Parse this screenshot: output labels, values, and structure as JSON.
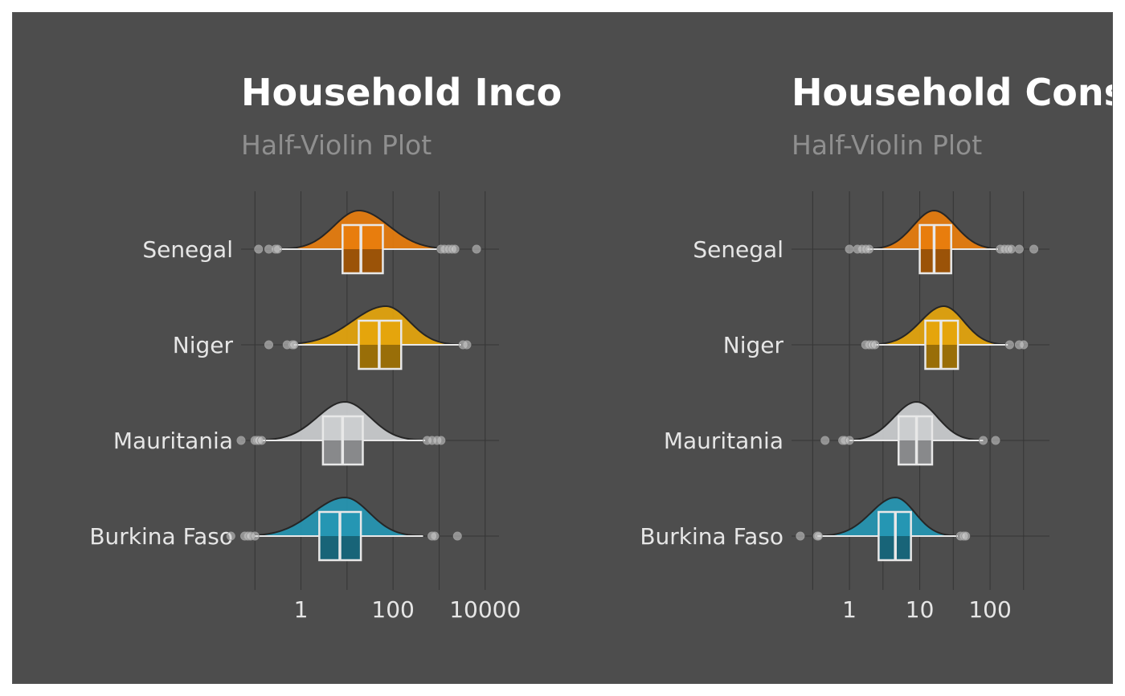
{
  "chart_data": [
    {
      "type": "half-violin",
      "title": "Household Income",
      "subtitle": "Half-Violin Plot",
      "x_scale": "log10",
      "xlim": [
        0.05,
        20000
      ],
      "x_ticks": [
        1,
        100,
        10000
      ],
      "x_tick_labels": [
        "1",
        "100",
        "10000"
      ],
      "minor_gridlines": [
        0.1,
        10,
        1000
      ],
      "grid": true,
      "categories": [
        "Senegal",
        "Niger",
        "Mauritania",
        "Burkina Faso"
      ],
      "series": [
        {
          "name": "Senegal",
          "color": "#E87D0D",
          "q1": 8,
          "median": 20,
          "q3": 60,
          "whisker_low": 0.35,
          "whisker_high": 900,
          "peak": 18,
          "outliers": [
            0.12,
            0.2,
            0.28,
            0.31,
            1100,
            1300,
            1600,
            1900,
            2200,
            6500
          ]
        },
        {
          "name": "Niger",
          "color": "#E5A50C",
          "q1": 18,
          "median": 50,
          "q3": 150,
          "whisker_low": 0.7,
          "whisker_high": 3000,
          "peak": 70,
          "outliers": [
            0.2,
            0.5,
            0.65,
            0.7,
            3300,
            4000
          ]
        },
        {
          "name": "Mauritania",
          "color": "#CBCDCF",
          "q1": 3,
          "median": 8,
          "q3": 22,
          "whisker_low": 0.14,
          "whisker_high": 500,
          "peak": 9,
          "outliers": [
            0.05,
            0.1,
            0.11,
            0.12,
            0.14,
            550,
            700,
            900,
            1100
          ]
        },
        {
          "name": "Burkina Faso",
          "color": "#2596B3",
          "q1": 2.5,
          "median": 7,
          "q3": 20,
          "whisker_low": 0.1,
          "whisker_high": 450,
          "peak": 9,
          "outliers": [
            0.03,
            0.06,
            0.07,
            0.08,
            0.1,
            700,
            800,
            2500
          ]
        }
      ]
    },
    {
      "type": "half-violin",
      "title": "Household Consumption",
      "subtitle": "Half-Violin Plot",
      "x_scale": "log10",
      "xlim": [
        0.15,
        700
      ],
      "x_ticks": [
        1,
        10,
        100
      ],
      "x_tick_labels": [
        "1",
        "10",
        "100"
      ],
      "minor_gridlines": [
        0.3,
        3,
        30,
        300
      ],
      "grid": true,
      "categories": [
        "Senegal",
        "Niger",
        "Mauritania",
        "Burkina Faso"
      ],
      "series": [
        {
          "name": "Senegal",
          "color": "#E87D0D",
          "q1": 10,
          "median": 16,
          "q3": 28,
          "whisker_low": 1.8,
          "whisker_high": 130,
          "peak": 16,
          "outliers": [
            1,
            1.3,
            1.5,
            1.7,
            1.9,
            140,
            160,
            180,
            200,
            260,
            420
          ]
        },
        {
          "name": "Niger",
          "color": "#E5A50C",
          "q1": 12,
          "median": 20,
          "q3": 35,
          "whisker_low": 2.3,
          "whisker_high": 180,
          "peak": 22,
          "outliers": [
            1.7,
            1.9,
            2.1,
            2.3,
            190,
            260,
            300
          ]
        },
        {
          "name": "Mauritania",
          "color": "#CBCDCF",
          "q1": 5,
          "median": 9,
          "q3": 15,
          "whisker_low": 1,
          "whisker_high": 80,
          "peak": 9,
          "outliers": [
            0.45,
            0.8,
            0.85,
            1,
            80,
            120
          ]
        },
        {
          "name": "Burkina Faso",
          "color": "#2596B3",
          "q1": 2.6,
          "median": 4.5,
          "q3": 7.5,
          "whisker_low": 0.35,
          "whisker_high": 35,
          "peak": 4.5,
          "outliers": [
            0.2,
            0.35,
            0.36,
            38,
            42,
            45
          ]
        }
      ]
    }
  ]
}
